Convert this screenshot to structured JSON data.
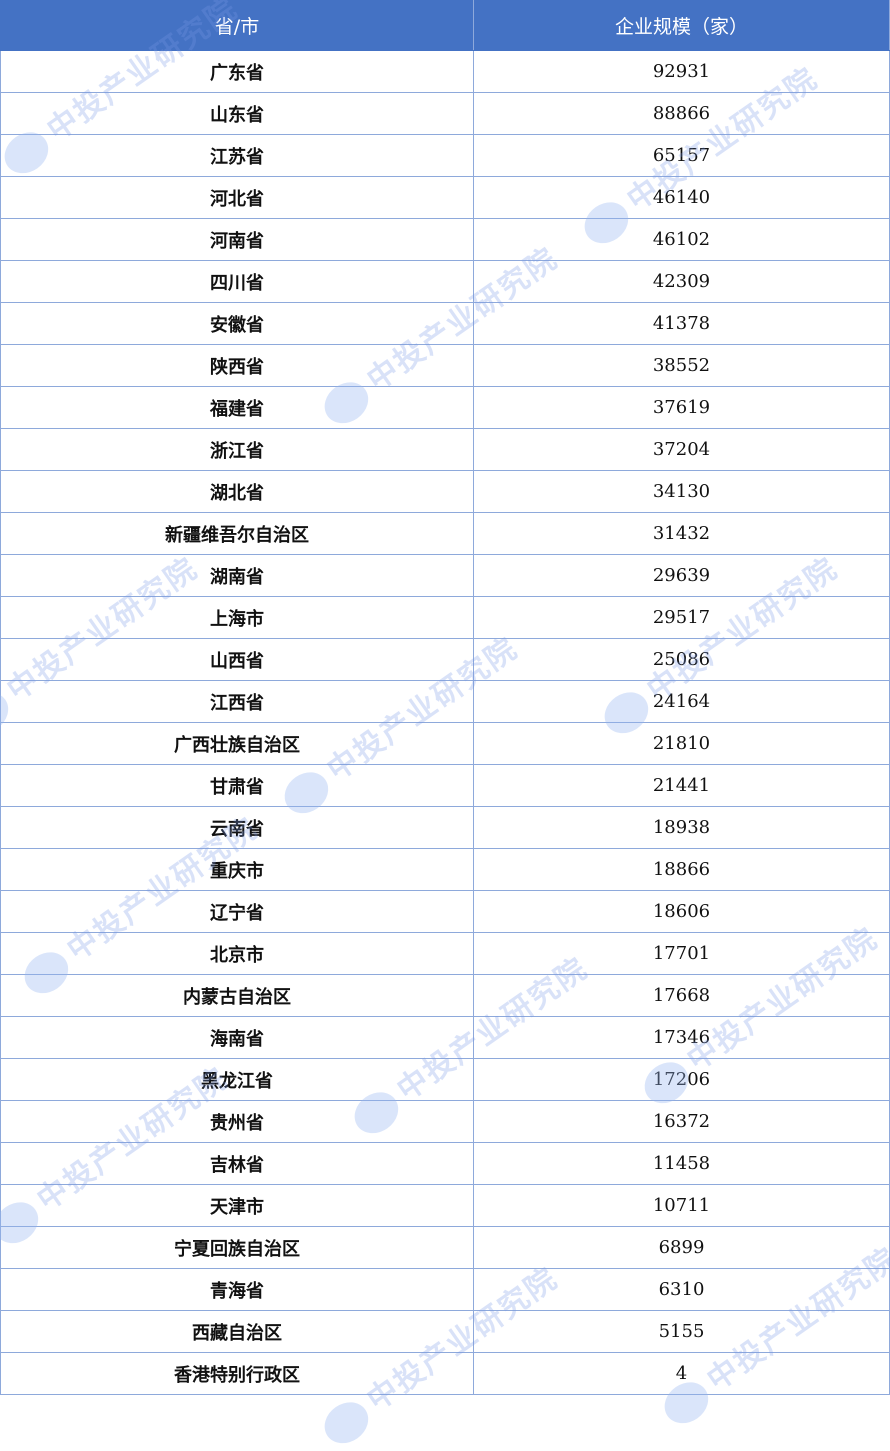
{
  "table": {
    "headers": [
      "省/市",
      "企业规模（家）"
    ],
    "rows": [
      [
        "广东省",
        "92931"
      ],
      [
        "山东省",
        "88866"
      ],
      [
        "江苏省",
        "65157"
      ],
      [
        "河北省",
        "46140"
      ],
      [
        "河南省",
        "46102"
      ],
      [
        "四川省",
        "42309"
      ],
      [
        "安徽省",
        "41378"
      ],
      [
        "陕西省",
        "38552"
      ],
      [
        "福建省",
        "37619"
      ],
      [
        "浙江省",
        "37204"
      ],
      [
        "湖北省",
        "34130"
      ],
      [
        "新疆维吾尔自治区",
        "31432"
      ],
      [
        "湖南省",
        "29639"
      ],
      [
        "上海市",
        "29517"
      ],
      [
        "山西省",
        "25086"
      ],
      [
        "江西省",
        "24164"
      ],
      [
        "广西壮族自治区",
        "21810"
      ],
      [
        "甘肃省",
        "21441"
      ],
      [
        "云南省",
        "18938"
      ],
      [
        "重庆市",
        "18866"
      ],
      [
        "辽宁省",
        "18606"
      ],
      [
        "北京市",
        "17701"
      ],
      [
        "内蒙古自治区",
        "17668"
      ],
      [
        "海南省",
        "17346"
      ],
      [
        "黑龙江省",
        "17206"
      ],
      [
        "贵州省",
        "16372"
      ],
      [
        "吉林省",
        "11458"
      ],
      [
        "天津市",
        "10711"
      ],
      [
        "宁夏回族自治区",
        "6899"
      ],
      [
        "青海省",
        "6310"
      ],
      [
        "西藏自治区",
        "5155"
      ],
      [
        "香港特别行政区",
        "4"
      ]
    ]
  },
  "watermark": "中投产业研究院",
  "colors": {
    "header_bg": "#4472C4",
    "header_text": "#FFFFFF",
    "grid": "#8EA9DB"
  }
}
